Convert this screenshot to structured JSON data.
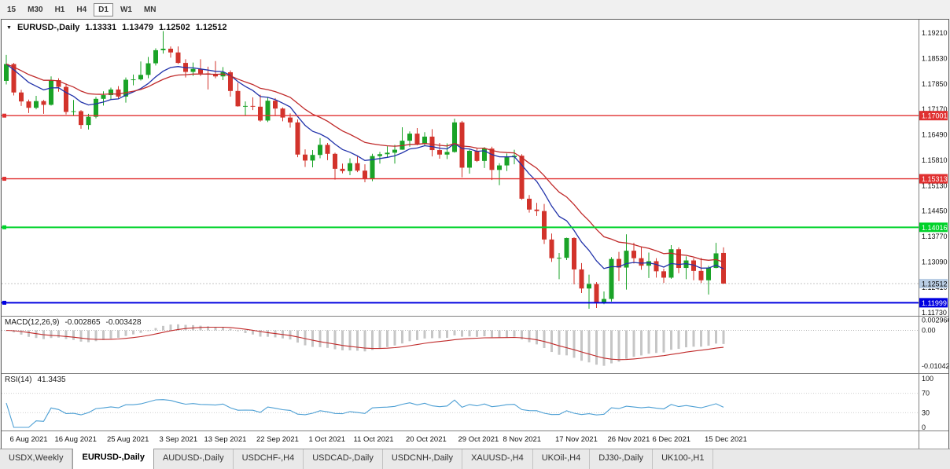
{
  "toolbar": {
    "timeframes": [
      {
        "label": "15",
        "active": false
      },
      {
        "label": "M30",
        "active": false
      },
      {
        "label": "H1",
        "active": false
      },
      {
        "label": "H4",
        "active": false
      },
      {
        "label": "D1",
        "active": true
      },
      {
        "label": "W1",
        "active": false
      },
      {
        "label": "MN",
        "active": false
      }
    ]
  },
  "chart": {
    "symbol_label": "EURUSD-,Daily",
    "ohlc": {
      "open": "1.13331",
      "high": "1.13479",
      "low": "1.12502",
      "close": "1.12512"
    },
    "macd": {
      "name": "MACD(12,26,9)",
      "main_value": "-0.002865",
      "signal_value": "-0.003428"
    },
    "rsi": {
      "name": "RSI(14)",
      "value": "41.3435"
    }
  },
  "price_scale": {
    "labels": [
      "1.19210",
      "1.18530",
      "1.17850",
      "1.17170",
      "1.16490",
      "1.15810",
      "1.15130",
      "1.14450",
      "1.13770",
      "1.13090",
      "1.12410",
      "1.11730"
    ],
    "current_badge": {
      "text": "1.12512",
      "bg": "#b9cde4",
      "fg": "#000000"
    }
  },
  "macd_scale": [
    {
      "text": "0.002966",
      "value": 0.002966
    },
    {
      "text": "0.00",
      "value": 0
    },
    {
      "text": "-0.01042",
      "value": -0.01042
    }
  ],
  "rsi_scale": [
    {
      "text": "100",
      "value": 100
    },
    {
      "text": "70",
      "value": 70
    },
    {
      "text": "30",
      "value": 30
    },
    {
      "text": "0",
      "value": 0
    }
  ],
  "hlines": [
    {
      "price": 1.17001,
      "label": "1.17001",
      "color": "#e03030",
      "width": 1.4
    },
    {
      "price": 1.15313,
      "label": "1.15313",
      "color": "#e03030",
      "width": 1.4
    },
    {
      "price": 1.14016,
      "label": "1.14016",
      "color": "#00d22a",
      "width": 2
    },
    {
      "price": 1.11999,
      "label": "1.11999",
      "color": "#0000e0",
      "width": 2
    }
  ],
  "colors": {
    "bull": "#1aa327",
    "bear": "#d2332b",
    "ma_fast": "#2233aa",
    "ma_slow": "#c02a2a",
    "hist": "#c6c6c6",
    "signal": "#c02a2a",
    "rsi": "#4c9fd4",
    "separator": "#7f7f7f",
    "bid_line": "#c4c4c4"
  },
  "x_labels": [
    {
      "text": "6 Aug 2021",
      "index": 1
    },
    {
      "text": "16 Aug 2021",
      "index": 7
    },
    {
      "text": "25 Aug 2021",
      "index": 14
    },
    {
      "text": "3 Sep 2021",
      "index": 21
    },
    {
      "text": "13 Sep 2021",
      "index": 27
    },
    {
      "text": "22 Sep 2021",
      "index": 34
    },
    {
      "text": "1 Oct 2021",
      "index": 41
    },
    {
      "text": "11 Oct 2021",
      "index": 47
    },
    {
      "text": "20 Oct 2021",
      "index": 54
    },
    {
      "text": "29 Oct 2021",
      "index": 61
    },
    {
      "text": "8 Nov 2021",
      "index": 67
    },
    {
      "text": "17 Nov 2021",
      "index": 74
    },
    {
      "text": "26 Nov 2021",
      "index": 81
    },
    {
      "text": "6 Dec 2021",
      "index": 87
    },
    {
      "text": "15 Dec 2021",
      "index": 94
    }
  ],
  "chart_data": {
    "type": "candlestick",
    "symbol": "EURUSD-",
    "timeframe": "Daily",
    "title": "EURUSD-,Daily",
    "price_range": [
      1.1165,
      1.19567
    ],
    "last_ohlc": [
      1.13331,
      1.13479,
      1.12502,
      1.12512
    ],
    "moving_averages": [
      {
        "type": "ema",
        "period": 9,
        "color_key": "ma_fast"
      },
      {
        "type": "ema",
        "period": 18,
        "color_key": "ma_slow"
      }
    ],
    "macd_params": [
      12,
      26,
      9
    ],
    "macd_display": [
      -0.002865,
      -0.003428
    ],
    "rsi_period": 14,
    "rsi_display": 41.3435,
    "support_resistance": [
      1.17001,
      1.15313,
      1.14016,
      1.11999
    ],
    "candles": [
      [
        1.1793,
        1.18625,
        1.17835,
        1.1838
      ],
      [
        1.1838,
        1.1841,
        1.1754,
        1.1762
      ],
      [
        1.1762,
        1.1769,
        1.1726,
        1.1738
      ],
      [
        1.1738,
        1.1743,
        1.1707,
        1.1721
      ],
      [
        1.1721,
        1.1753,
        1.1717,
        1.1739
      ],
      [
        1.1739,
        1.1742,
        1.1705,
        1.1729
      ],
      [
        1.1729,
        1.1805,
        1.1727,
        1.1795
      ],
      [
        1.1795,
        1.18,
        1.1764,
        1.1777
      ],
      [
        1.1777,
        1.1786,
        1.1703,
        1.171
      ],
      [
        1.171,
        1.1742,
        1.1701,
        1.1712
      ],
      [
        1.1712,
        1.1715,
        1.1665,
        1.1675
      ],
      [
        1.1675,
        1.1705,
        1.1663,
        1.1697
      ],
      [
        1.1697,
        1.175,
        1.1693,
        1.1745
      ],
      [
        1.1745,
        1.1765,
        1.1727,
        1.1755
      ],
      [
        1.1755,
        1.1775,
        1.1744,
        1.177
      ],
      [
        1.177,
        1.1779,
        1.1746,
        1.1751
      ],
      [
        1.1751,
        1.1802,
        1.1735,
        1.1796
      ],
      [
        1.1796,
        1.181,
        1.1781,
        1.1797
      ],
      [
        1.1797,
        1.1845,
        1.1794,
        1.1809
      ],
      [
        1.1809,
        1.1857,
        1.18,
        1.184
      ],
      [
        1.184,
        1.188,
        1.1834,
        1.1875
      ],
      [
        1.1875,
        1.1926,
        1.1866,
        1.1879
      ],
      [
        1.1879,
        1.1885,
        1.1855,
        1.1869
      ],
      [
        1.1869,
        1.1885,
        1.1838,
        1.1841
      ],
      [
        1.1841,
        1.1851,
        1.1802,
        1.1817
      ],
      [
        1.1817,
        1.1842,
        1.1806,
        1.1825
      ],
      [
        1.1825,
        1.1851,
        1.1806,
        1.1813
      ],
      [
        1.1813,
        1.1831,
        1.177,
        1.181
      ],
      [
        1.181,
        1.1846,
        1.18,
        1.1805
      ],
      [
        1.1805,
        1.183,
        1.1795,
        1.1816
      ],
      [
        1.1816,
        1.1821,
        1.1751,
        1.1766
      ],
      [
        1.1766,
        1.1788,
        1.1724,
        1.1725
      ],
      [
        1.1725,
        1.1738,
        1.17,
        1.1726
      ],
      [
        1.1726,
        1.1749,
        1.1715,
        1.1724
      ],
      [
        1.1724,
        1.1756,
        1.1684,
        1.1687
      ],
      [
        1.1687,
        1.175,
        1.1683,
        1.174
      ],
      [
        1.174,
        1.1747,
        1.1701,
        1.1719
      ],
      [
        1.1719,
        1.1722,
        1.1685,
        1.1695
      ],
      [
        1.1695,
        1.1706,
        1.1668,
        1.1682
      ],
      [
        1.1682,
        1.169,
        1.1589,
        1.1596
      ],
      [
        1.1596,
        1.161,
        1.1563,
        1.158
      ],
      [
        1.158,
        1.1608,
        1.1562,
        1.1595
      ],
      [
        1.1595,
        1.164,
        1.1586,
        1.1622
      ],
      [
        1.1622,
        1.1627,
        1.1581,
        1.1598
      ],
      [
        1.1598,
        1.1601,
        1.1529,
        1.1558
      ],
      [
        1.1558,
        1.1572,
        1.1546,
        1.1552
      ],
      [
        1.1552,
        1.1586,
        1.1541,
        1.1573
      ],
      [
        1.1573,
        1.1591,
        1.1549,
        1.1553
      ],
      [
        1.1553,
        1.157,
        1.1522,
        1.1531
      ],
      [
        1.1531,
        1.1598,
        1.1525,
        1.1592
      ],
      [
        1.1592,
        1.1603,
        1.1572,
        1.1597
      ],
      [
        1.1597,
        1.1618,
        1.1587,
        1.1601
      ],
      [
        1.1601,
        1.1622,
        1.1572,
        1.1609
      ],
      [
        1.1609,
        1.1669,
        1.1609,
        1.1633
      ],
      [
        1.1633,
        1.1658,
        1.1617,
        1.1652
      ],
      [
        1.1652,
        1.1667,
        1.1621,
        1.1624
      ],
      [
        1.1624,
        1.1656,
        1.162,
        1.1644
      ],
      [
        1.1644,
        1.1664,
        1.1591,
        1.1608
      ],
      [
        1.1608,
        1.1627,
        1.1585,
        1.1596
      ],
      [
        1.1596,
        1.1626,
        1.1584,
        1.1603
      ],
      [
        1.1603,
        1.1692,
        1.1601,
        1.1682
      ],
      [
        1.1682,
        1.1686,
        1.1535,
        1.1561
      ],
      [
        1.1561,
        1.1609,
        1.1545,
        1.1606
      ],
      [
        1.1606,
        1.1612,
        1.1576,
        1.1579
      ],
      [
        1.1579,
        1.1616,
        1.156,
        1.1612
      ],
      [
        1.1612,
        1.1617,
        1.1528,
        1.1555
      ],
      [
        1.1555,
        1.1573,
        1.1514,
        1.1567
      ],
      [
        1.1567,
        1.1599,
        1.1552,
        1.1589
      ],
      [
        1.1589,
        1.1609,
        1.157,
        1.1593
      ],
      [
        1.1593,
        1.1597,
        1.1475,
        1.1478
      ],
      [
        1.1478,
        1.1488,
        1.1441,
        1.1449
      ],
      [
        1.1449,
        1.1467,
        1.1432,
        1.1445
      ],
      [
        1.1445,
        1.1464,
        1.1357,
        1.1369
      ],
      [
        1.1369,
        1.1385,
        1.1309,
        1.1319
      ],
      [
        1.1319,
        1.1333,
        1.1263,
        1.132
      ],
      [
        1.132,
        1.1374,
        1.1314,
        1.1373
      ],
      [
        1.1373,
        1.1375,
        1.1249,
        1.1289
      ],
      [
        1.1289,
        1.1306,
        1.1226,
        1.1238
      ],
      [
        1.1238,
        1.1275,
        1.1184,
        1.125
      ],
      [
        1.125,
        1.1255,
        1.1186,
        1.12
      ],
      [
        1.12,
        1.123,
        1.1196,
        1.121
      ],
      [
        1.121,
        1.1322,
        1.1203,
        1.1317
      ],
      [
        1.1317,
        1.1336,
        1.1258,
        1.1294
      ],
      [
        1.1294,
        1.1383,
        1.1235,
        1.1339
      ],
      [
        1.1339,
        1.136,
        1.1305,
        1.1319
      ],
      [
        1.1319,
        1.1349,
        1.1288,
        1.1299
      ],
      [
        1.1299,
        1.1334,
        1.1266,
        1.1311
      ],
      [
        1.1311,
        1.1319,
        1.1267,
        1.1284
      ],
      [
        1.1284,
        1.1291,
        1.1253,
        1.1267
      ],
      [
        1.1267,
        1.1354,
        1.1264,
        1.1343
      ],
      [
        1.1343,
        1.1348,
        1.1279,
        1.1293
      ],
      [
        1.1293,
        1.1324,
        1.1263,
        1.1313
      ],
      [
        1.1313,
        1.1319,
        1.126,
        1.1285
      ],
      [
        1.1285,
        1.132,
        1.1253,
        1.126
      ],
      [
        1.126,
        1.12985,
        1.1222,
        1.1293
      ],
      [
        1.1293,
        1.136,
        1.1292,
        1.1332
      ],
      [
        1.13331,
        1.13479,
        1.12502,
        1.12512
      ]
    ]
  },
  "tabs": [
    {
      "label": "USDX,Weekly",
      "active": false
    },
    {
      "label": "EURUSD-,Daily",
      "active": true
    },
    {
      "label": "AUDUSD-,Daily",
      "active": false
    },
    {
      "label": "USDCHF-,H4",
      "active": false
    },
    {
      "label": "USDCAD-,Daily",
      "active": false
    },
    {
      "label": "USDCNH-,Daily",
      "active": false
    },
    {
      "label": "XAUUSD-,H4",
      "active": false
    },
    {
      "label": "UKOil-,H4",
      "active": false
    },
    {
      "label": "DJ30-,Daily",
      "active": false
    },
    {
      "label": "UK100-,H1",
      "active": false
    }
  ]
}
